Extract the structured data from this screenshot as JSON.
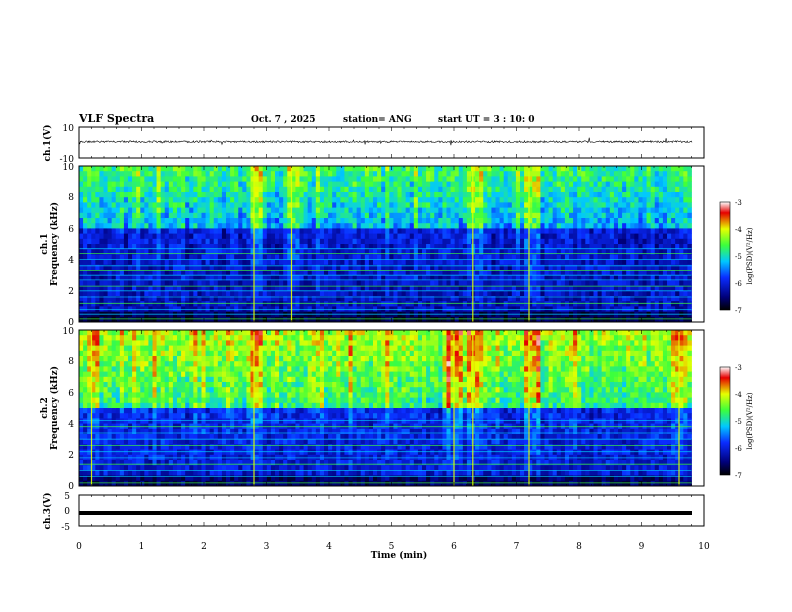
{
  "header": {
    "title": "VLF Spectra",
    "date": "Oct. 7 , 2025",
    "station": "station= ANG",
    "start_ut": "start UT =  3 : 10: 0"
  },
  "colors": {
    "spectro_dark": "#00007a",
    "spectro_blue": "#0a2cff",
    "spectro_cyan": "#00c8ff",
    "spectro_green": "#3cff3c",
    "spectro_yellow": "#e6ff00",
    "spectro_red": "#e60000"
  },
  "chart_data": [
    {
      "type": "line",
      "name": "ch1-waveform",
      "ylabel": "ch.1(V)",
      "ylim": [
        -10,
        10
      ],
      "yticks": [
        "10",
        "-10"
      ],
      "baseline_V": 0.5,
      "xlim": [
        0,
        10
      ],
      "xlabel": "Time (min)"
    },
    {
      "type": "heatmap",
      "name": "ch1-spectrogram",
      "ylabel": "ch.1\nFrequency (kHz)",
      "ylim": [
        0,
        10
      ],
      "yticks": [
        "0",
        "2",
        "4",
        "6",
        "8",
        "10"
      ],
      "xlim": [
        0,
        9.8
      ],
      "colorbar": {
        "label": "log(PSD)(V²/Hz)",
        "range": [
          -7,
          -3
        ],
        "ticks": [
          "-3",
          "-4",
          "-5",
          "-6",
          "-7"
        ]
      },
      "background_level": -6.3,
      "bright_band_kHz": [
        6,
        10
      ],
      "bright_band_level": -4.8,
      "tone_lines_kHz": [
        0.2,
        0.5,
        0.8,
        1.2,
        1.6,
        2.0,
        2.3,
        2.7,
        3.0,
        3.3,
        3.6,
        4.0,
        4.4,
        4.7
      ],
      "bursts_min": [
        2.8,
        3.4,
        6.3,
        7.2
      ]
    },
    {
      "type": "heatmap",
      "name": "ch2-spectrogram",
      "ylabel": "ch.2\nFrequency (kHz)",
      "ylim": [
        0,
        10
      ],
      "yticks": [
        "0",
        "2",
        "4",
        "6",
        "8",
        "10"
      ],
      "xlim": [
        0,
        9.8
      ],
      "colorbar": {
        "label": "log(PSD)(V²/Hz)",
        "range": [
          -7,
          -3
        ],
        "ticks": [
          "-3",
          "-4",
          "-5",
          "-6",
          "-7"
        ]
      },
      "background_level": -6.2,
      "bright_band_kHz": [
        5,
        10
      ],
      "bright_band_level": -4.3,
      "tone_lines_kHz": [
        0.2,
        0.6,
        1.0,
        1.4,
        1.8,
        2.2,
        2.6,
        3.0,
        3.4,
        3.8,
        4.2
      ],
      "bursts_min": [
        0.2,
        2.8,
        6.0,
        6.3,
        7.2,
        9.6
      ]
    },
    {
      "type": "line",
      "name": "ch3-waveform",
      "ylabel": "ch.3(V)",
      "ylim": [
        -5,
        5
      ],
      "yticks": [
        "5",
        "0",
        "-5"
      ],
      "baseline_V": -0.8,
      "xlim": [
        0,
        10
      ],
      "xticks": [
        "0",
        "1",
        "2",
        "3",
        "4",
        "5",
        "6",
        "7",
        "8",
        "9",
        "10"
      ],
      "xlabel": "Time (min)"
    }
  ]
}
